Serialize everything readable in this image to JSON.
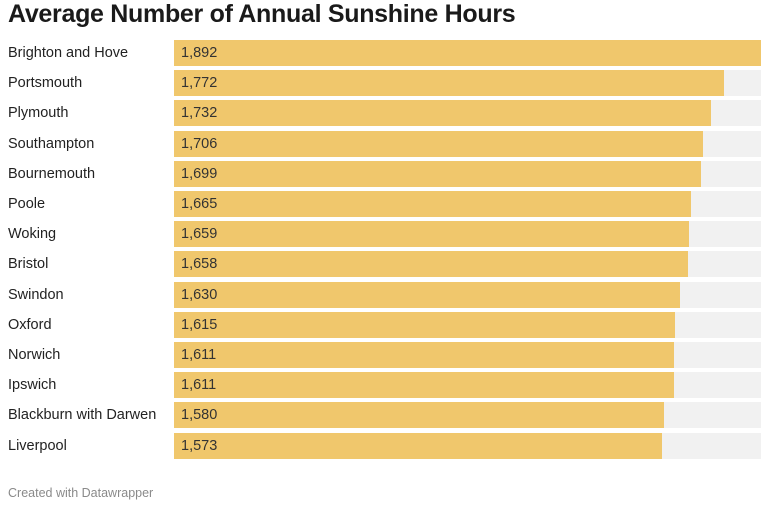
{
  "chart_data": {
    "type": "bar",
    "orientation": "horizontal",
    "title": "Average Number of Annual Sunshine Hours",
    "categories": [
      "Brighton and Hove",
      "Portsmouth",
      "Plymouth",
      "Southampton",
      "Bournemouth",
      "Poole",
      "Woking",
      "Bristol",
      "Swindon",
      "Oxford",
      "Norwich",
      "Ipswich",
      "Blackburn with Darwen",
      "Liverpool"
    ],
    "values": [
      1892,
      1772,
      1732,
      1706,
      1699,
      1665,
      1659,
      1658,
      1630,
      1615,
      1611,
      1611,
      1580,
      1573
    ],
    "value_labels": [
      "1,892",
      "1,772",
      "1,732",
      "1,706",
      "1,699",
      "1,665",
      "1,659",
      "1,658",
      "1,630",
      "1,615",
      "1,611",
      "1,611",
      "1,580",
      "1,573"
    ],
    "xlim": [
      0,
      1892
    ],
    "grid": false,
    "legend": "none",
    "bar_color": "#f0c76c",
    "track_color": "#f1f1f1"
  },
  "footer": {
    "credit": "Created with Datawrapper"
  }
}
